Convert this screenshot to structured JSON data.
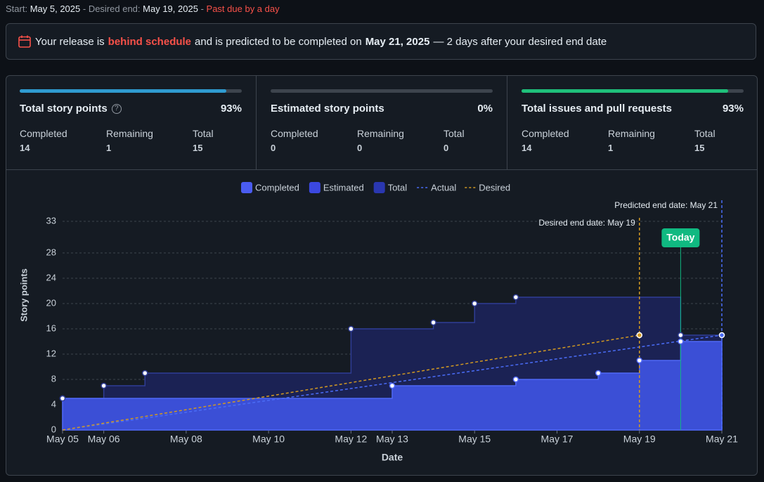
{
  "header": {
    "start_label": "Start:",
    "start": "May 5, 2025",
    "desired_label": "- Desired end:",
    "desired": "May 19, 2025",
    "separator": "-",
    "status": "Past due by a day"
  },
  "banner": {
    "lead": "Your release is",
    "status": "behind schedule",
    "middle": "and is predicted to be completed on",
    "date": "May 21, 2025",
    "tail": "— 2 days after your desired end date"
  },
  "cards": [
    {
      "title": "Total story points",
      "percent": {
        "value": 93,
        "label": "93%"
      },
      "color": "#2f9bd0",
      "stats": [
        {
          "label": "Completed",
          "value": "14"
        },
        {
          "label": "Remaining",
          "value": "1"
        },
        {
          "label": "Total",
          "value": "15"
        }
      ]
    },
    {
      "title": "Estimated story points",
      "percent": {
        "value": 0,
        "label": "0%"
      },
      "color": "#6e7681",
      "stats": [
        {
          "label": "Completed",
          "value": "0"
        },
        {
          "label": "Remaining",
          "value": "0"
        },
        {
          "label": "Total",
          "value": "0"
        }
      ]
    },
    {
      "title": "Total issues and pull requests",
      "percent": {
        "value": 93,
        "label": "93%"
      },
      "color": "#1fbf7a",
      "stats": [
        {
          "label": "Completed",
          "value": "14"
        },
        {
          "label": "Remaining",
          "value": "1"
        },
        {
          "label": "Total",
          "value": "15"
        }
      ]
    }
  ],
  "chart_data": {
    "type": "area",
    "x_label": "Date",
    "y_label": "Story points",
    "xlim": [
      5,
      21
    ],
    "xticks": [
      {
        "value": 5,
        "label": "May 05"
      },
      {
        "value": 6,
        "label": "May 06"
      },
      {
        "value": 8,
        "label": "May 08"
      },
      {
        "value": 10,
        "label": "May 10"
      },
      {
        "value": 12,
        "label": "May 12"
      },
      {
        "value": 13,
        "label": "May 13"
      },
      {
        "value": 15,
        "label": "May 15"
      },
      {
        "value": 17,
        "label": "May 17"
      },
      {
        "value": 19,
        "label": "May 19"
      },
      {
        "value": 21,
        "label": "May 21"
      }
    ],
    "ylim": [
      0,
      33
    ],
    "yticks": [
      0,
      4,
      8,
      12,
      16,
      20,
      24,
      28,
      33
    ],
    "grid": true,
    "series": [
      {
        "name": "Completed",
        "color": "#4a5cf0",
        "kind": "step",
        "x": [
          5,
          13,
          16,
          18,
          19,
          20,
          21
        ],
        "values": [
          5,
          7,
          8,
          9,
          11,
          14,
          15
        ]
      },
      {
        "name": "Estimated",
        "color": "#3b48e0",
        "kind": "step"
      },
      {
        "name": "Total",
        "color": "#2a37b0",
        "kind": "step",
        "x": [
          5,
          6,
          7,
          12,
          14,
          15,
          16,
          20,
          21
        ],
        "values": [
          5,
          7,
          9,
          16,
          17,
          20,
          21,
          15,
          15
        ]
      },
      {
        "name": "Actual",
        "color": "#4a6cf7",
        "kind": "line",
        "x": [
          5,
          21
        ],
        "values": [
          0,
          15
        ]
      },
      {
        "name": "Desired",
        "color": "#d29922",
        "kind": "line",
        "x": [
          5,
          19
        ],
        "values": [
          0,
          15
        ]
      }
    ],
    "annotations": [
      {
        "text": "Predicted end date: May 21",
        "x": 21,
        "color": "#4a6cf7"
      },
      {
        "text": "Desired end date: May 19",
        "x": 19,
        "color": "#d29922"
      },
      {
        "text": "Today",
        "x": 20,
        "color": "#10b981"
      }
    ]
  }
}
